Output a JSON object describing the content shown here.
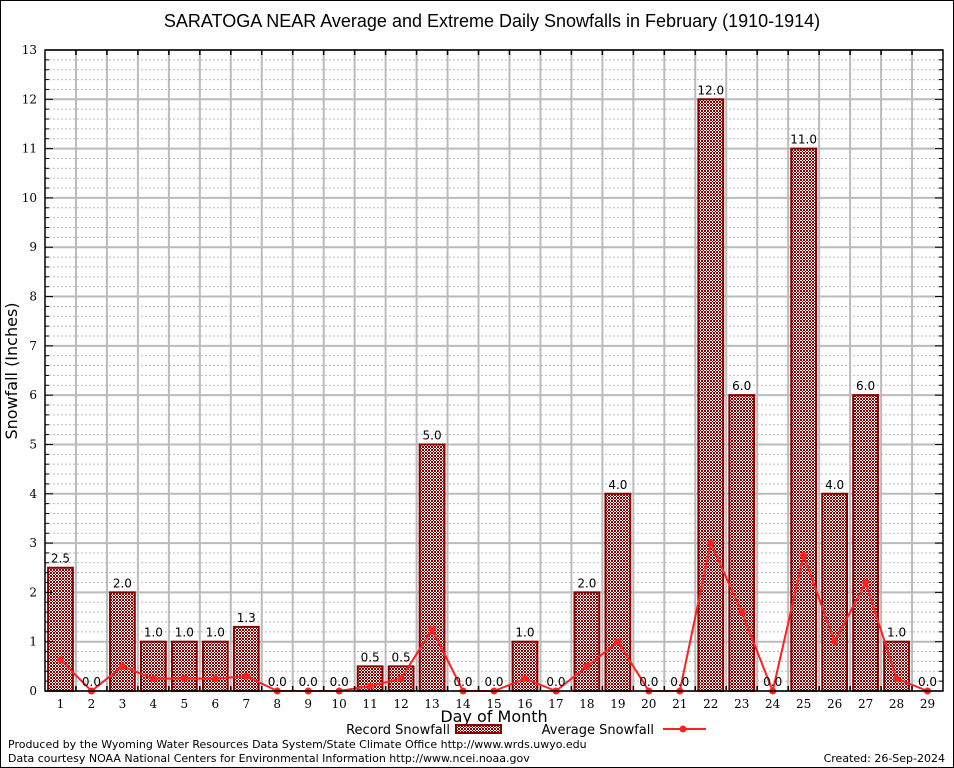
{
  "chart_data": {
    "type": "bar",
    "title": "SARATOGA NEAR Average and Extreme Daily Snowfalls in February (1910-1914)",
    "xlabel": "Day of Month",
    "ylabel": "Snowfall (Inches)",
    "ylim": [
      0,
      13
    ],
    "yticks": [
      0,
      1,
      2,
      3,
      4,
      5,
      6,
      7,
      8,
      9,
      10,
      11,
      12,
      13
    ],
    "grid": true,
    "categories": [
      "1",
      "2",
      "3",
      "4",
      "5",
      "6",
      "7",
      "8",
      "9",
      "10",
      "11",
      "12",
      "13",
      "14",
      "15",
      "16",
      "17",
      "18",
      "19",
      "20",
      "21",
      "22",
      "23",
      "24",
      "25",
      "26",
      "27",
      "28",
      "29"
    ],
    "series": [
      {
        "name": "Record Snowfall",
        "type": "bar",
        "color": "#8b0000",
        "values": [
          2.5,
          0.0,
          2.0,
          1.0,
          1.0,
          1.0,
          1.3,
          0.0,
          0.0,
          0.0,
          0.5,
          0.5,
          5.0,
          0.0,
          0.0,
          1.0,
          0.0,
          2.0,
          4.0,
          0.0,
          0.0,
          12.0,
          6.0,
          0.0,
          11.0,
          4.0,
          6.0,
          1.0,
          0.0
        ],
        "labels": [
          "2.5",
          "0.0",
          "2.0",
          "1.0",
          "1.0",
          "1.0",
          "1.3",
          "0.0",
          "0.0",
          "0.0",
          "0.5",
          "0.5",
          "5.0",
          "0.0",
          "0.0",
          "1.0",
          "0.0",
          "2.0",
          "4.0",
          "0.0",
          "0.0",
          "12.0",
          "6.0",
          "0.0",
          "11.0",
          "4.0",
          "6.0",
          "1.0",
          "0.0"
        ]
      },
      {
        "name": "Average Snowfall",
        "type": "line",
        "color": "#ff2020",
        "values": [
          0.63,
          0.0,
          0.5,
          0.25,
          0.25,
          0.25,
          0.3,
          0.0,
          0.0,
          0.0,
          0.1,
          0.25,
          1.25,
          0.0,
          0.0,
          0.25,
          0.0,
          0.5,
          1.0,
          0.0,
          0.0,
          3.0,
          1.6,
          0.0,
          2.75,
          1.0,
          2.2,
          0.25,
          0.0
        ]
      }
    ],
    "legend": "bottom-center"
  },
  "footer": {
    "line1": "Produced by the Wyoming Water Resources Data System/State Climate Office http://www.wrds.uwyo.edu",
    "line2": "Data courtesy NOAA National Centers for Environmental Information http://www.ncei.noaa.gov",
    "created": "Created: 26-Sep-2024"
  }
}
